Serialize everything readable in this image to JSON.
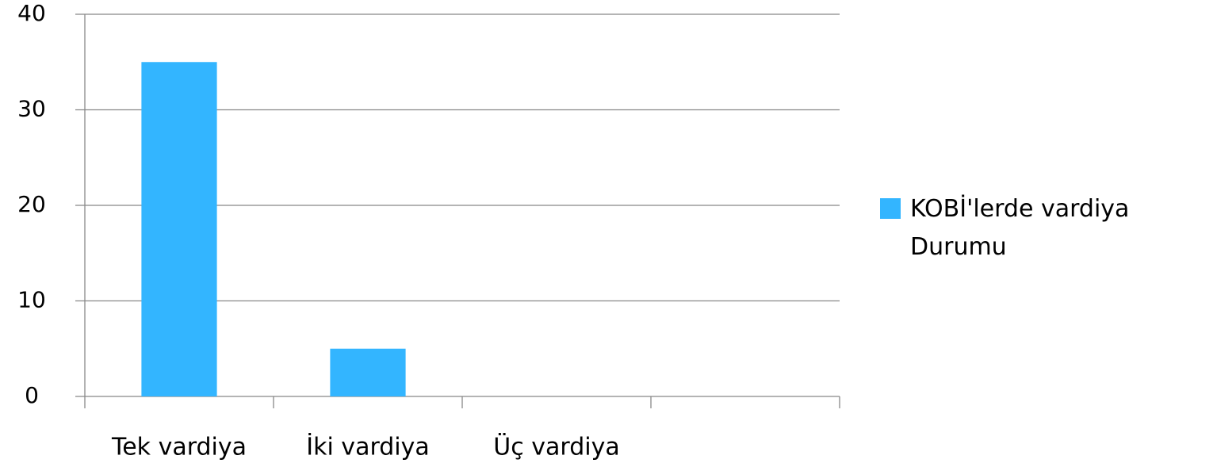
{
  "chart_data": {
    "type": "bar",
    "categories": [
      "Tek vardiya",
      "İki vardiya",
      "Üç vardiya",
      null
    ],
    "series": [
      {
        "name": "KOBİ'lerde vardiya Durumu",
        "color": "#33b5ff",
        "values": [
          35,
          5,
          0,
          null
        ]
      }
    ],
    "ylim": [
      0,
      40
    ],
    "yticks": [
      0,
      10,
      20,
      30,
      40
    ],
    "grid": true,
    "legend": "right"
  }
}
